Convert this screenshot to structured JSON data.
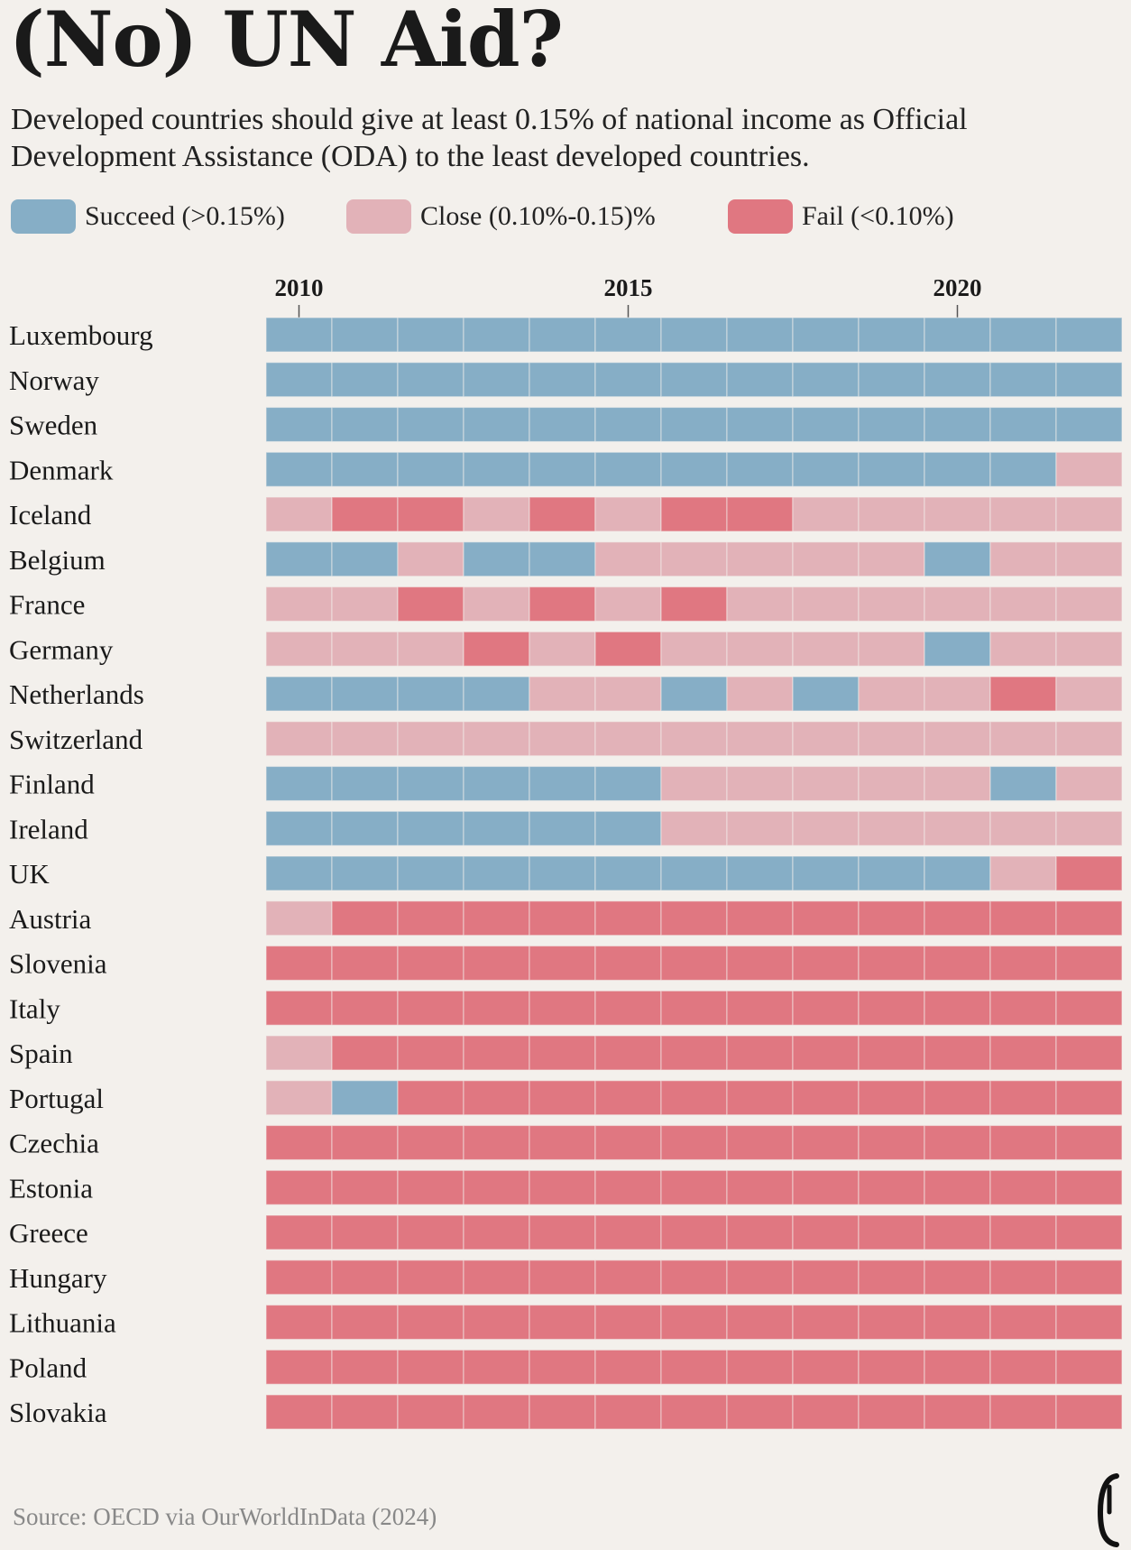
{
  "title": "(No) UN Aid?",
  "subtitle": "Developed countries should give at least 0.15% of national income as Official Development Assistance (ODA) to the least developed countries.",
  "legend": [
    {
      "label": "Succeed (>0.15%)",
      "status": "S",
      "color": "#86aec6"
    },
    {
      "label": "Close (0.10%-0.15)%",
      "status": "C",
      "color": "#e2b2b8"
    },
    {
      "label": "Fail (<0.10%)",
      "status": "F",
      "color": "#e07781"
    }
  ],
  "source": "Source: OECD via OurWorldInData (2024)",
  "logo": "e-icon",
  "chart_data": {
    "type": "heatmap",
    "x": [
      2010,
      2011,
      2012,
      2013,
      2014,
      2015,
      2016,
      2017,
      2018,
      2019,
      2020,
      2021,
      2022
    ],
    "x_tick_labels": [
      {
        "year": 2010,
        "label": "2010"
      },
      {
        "year": 2015,
        "label": "2015"
      },
      {
        "year": 2020,
        "label": "2020"
      }
    ],
    "status_key": {
      "S": "Succeed (>0.15%)",
      "C": "Close (0.10%-0.15)%",
      "F": "Fail (<0.10%)"
    },
    "rows": [
      {
        "country": "Luxembourg",
        "values": [
          "S",
          "S",
          "S",
          "S",
          "S",
          "S",
          "S",
          "S",
          "S",
          "S",
          "S",
          "S",
          "S"
        ]
      },
      {
        "country": "Norway",
        "values": [
          "S",
          "S",
          "S",
          "S",
          "S",
          "S",
          "S",
          "S",
          "S",
          "S",
          "S",
          "S",
          "S"
        ]
      },
      {
        "country": "Sweden",
        "values": [
          "S",
          "S",
          "S",
          "S",
          "S",
          "S",
          "S",
          "S",
          "S",
          "S",
          "S",
          "S",
          "S"
        ]
      },
      {
        "country": "Denmark",
        "values": [
          "S",
          "S",
          "S",
          "S",
          "S",
          "S",
          "S",
          "S",
          "S",
          "S",
          "S",
          "S",
          "C"
        ]
      },
      {
        "country": "Iceland",
        "values": [
          "C",
          "F",
          "F",
          "C",
          "F",
          "C",
          "F",
          "F",
          "C",
          "C",
          "C",
          "C",
          "C"
        ]
      },
      {
        "country": "Belgium",
        "values": [
          "S",
          "S",
          "C",
          "S",
          "S",
          "C",
          "C",
          "C",
          "C",
          "C",
          "S",
          "C",
          "C"
        ]
      },
      {
        "country": "France",
        "values": [
          "C",
          "C",
          "F",
          "C",
          "F",
          "C",
          "F",
          "C",
          "C",
          "C",
          "C",
          "C",
          "C"
        ]
      },
      {
        "country": "Germany",
        "values": [
          "C",
          "C",
          "C",
          "F",
          "C",
          "F",
          "C",
          "C",
          "C",
          "C",
          "S",
          "C",
          "C"
        ]
      },
      {
        "country": "Netherlands",
        "values": [
          "S",
          "S",
          "S",
          "S",
          "C",
          "C",
          "S",
          "C",
          "S",
          "C",
          "C",
          "F",
          "C"
        ]
      },
      {
        "country": "Switzerland",
        "values": [
          "C",
          "C",
          "C",
          "C",
          "C",
          "C",
          "C",
          "C",
          "C",
          "C",
          "C",
          "C",
          "C"
        ]
      },
      {
        "country": "Finland",
        "values": [
          "S",
          "S",
          "S",
          "S",
          "S",
          "S",
          "C",
          "C",
          "C",
          "C",
          "C",
          "S",
          "C"
        ]
      },
      {
        "country": "Ireland",
        "values": [
          "S",
          "S",
          "S",
          "S",
          "S",
          "S",
          "C",
          "C",
          "C",
          "C",
          "C",
          "C",
          "C"
        ]
      },
      {
        "country": "UK",
        "values": [
          "S",
          "S",
          "S",
          "S",
          "S",
          "S",
          "S",
          "S",
          "S",
          "S",
          "S",
          "C",
          "F"
        ]
      },
      {
        "country": "Austria",
        "values": [
          "C",
          "F",
          "F",
          "F",
          "F",
          "F",
          "F",
          "F",
          "F",
          "F",
          "F",
          "F",
          "F"
        ]
      },
      {
        "country": "Slovenia",
        "values": [
          "F",
          "F",
          "F",
          "F",
          "F",
          "F",
          "F",
          "F",
          "F",
          "F",
          "F",
          "F",
          "F"
        ]
      },
      {
        "country": "Italy",
        "values": [
          "F",
          "F",
          "F",
          "F",
          "F",
          "F",
          "F",
          "F",
          "F",
          "F",
          "F",
          "F",
          "F"
        ]
      },
      {
        "country": "Spain",
        "values": [
          "C",
          "F",
          "F",
          "F",
          "F",
          "F",
          "F",
          "F",
          "F",
          "F",
          "F",
          "F",
          "F"
        ]
      },
      {
        "country": "Portugal",
        "values": [
          "C",
          "S",
          "F",
          "F",
          "F",
          "F",
          "F",
          "F",
          "F",
          "F",
          "F",
          "F",
          "F"
        ]
      },
      {
        "country": "Czechia",
        "values": [
          "F",
          "F",
          "F",
          "F",
          "F",
          "F",
          "F",
          "F",
          "F",
          "F",
          "F",
          "F",
          "F"
        ]
      },
      {
        "country": "Estonia",
        "values": [
          "F",
          "F",
          "F",
          "F",
          "F",
          "F",
          "F",
          "F",
          "F",
          "F",
          "F",
          "F",
          "F"
        ]
      },
      {
        "country": "Greece",
        "values": [
          "F",
          "F",
          "F",
          "F",
          "F",
          "F",
          "F",
          "F",
          "F",
          "F",
          "F",
          "F",
          "F"
        ]
      },
      {
        "country": "Hungary",
        "values": [
          "F",
          "F",
          "F",
          "F",
          "F",
          "F",
          "F",
          "F",
          "F",
          "F",
          "F",
          "F",
          "F"
        ]
      },
      {
        "country": "Lithuania",
        "values": [
          "F",
          "F",
          "F",
          "F",
          "F",
          "F",
          "F",
          "F",
          "F",
          "F",
          "F",
          "F",
          "F"
        ]
      },
      {
        "country": "Poland",
        "values": [
          "F",
          "F",
          "F",
          "F",
          "F",
          "F",
          "F",
          "F",
          "F",
          "F",
          "F",
          "F",
          "F"
        ]
      },
      {
        "country": "Slovakia",
        "values": [
          "F",
          "F",
          "F",
          "F",
          "F",
          "F",
          "F",
          "F",
          "F",
          "F",
          "F",
          "F",
          "F"
        ]
      }
    ]
  }
}
